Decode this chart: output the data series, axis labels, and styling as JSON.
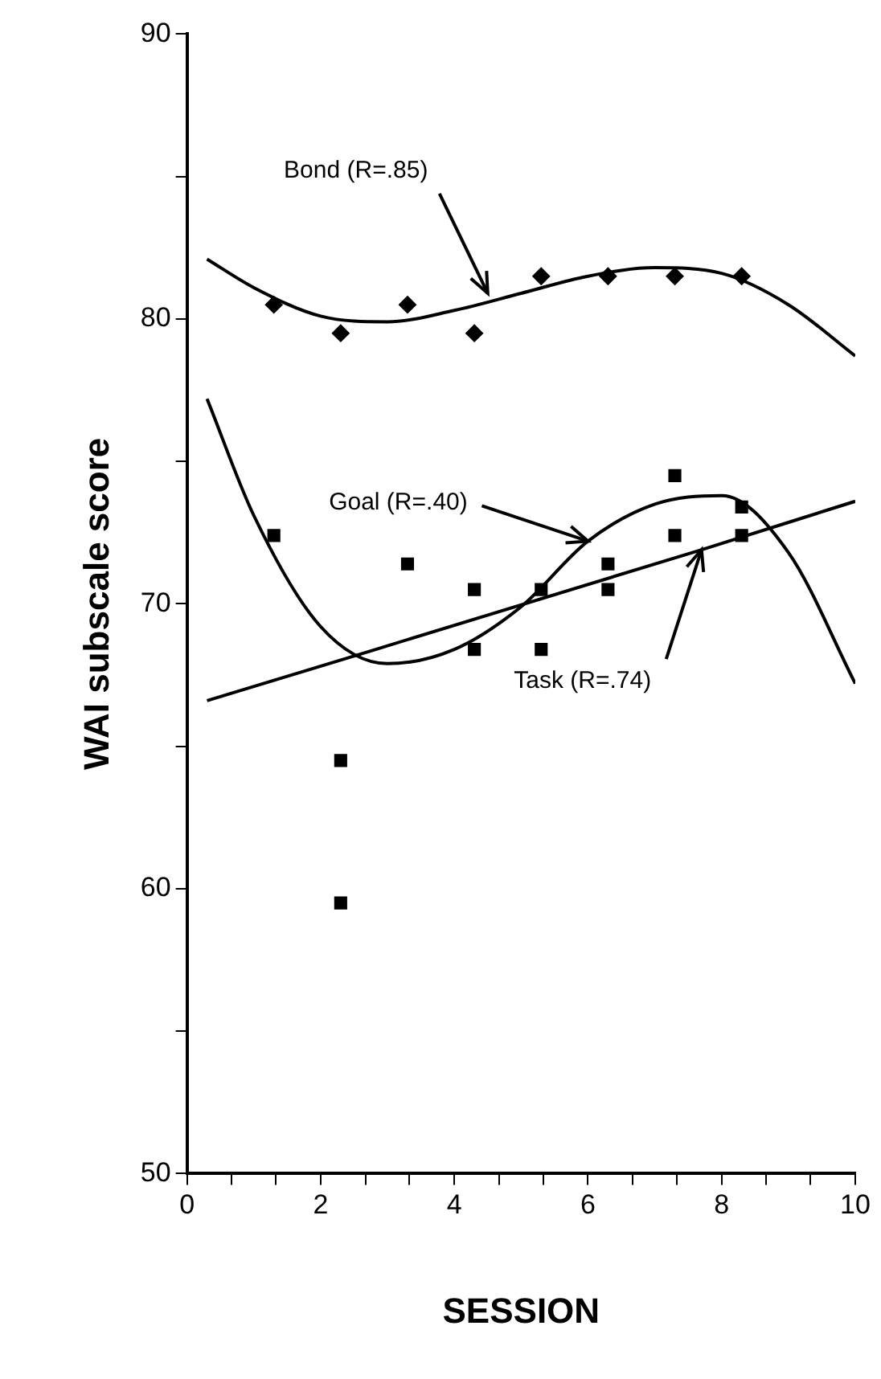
{
  "chart_data": {
    "type": "scatter",
    "xlabel": "SESSION",
    "ylabel": "WAI subscale score",
    "xlim": [
      0,
      10
    ],
    "ylim": [
      50,
      90
    ],
    "xticks": [
      0,
      {
        "value": 0.67,
        "label": null
      },
      {
        "value": 1.33,
        "label": null
      },
      2,
      {
        "value": 2.67,
        "label": null
      },
      {
        "value": 3.33,
        "label": null
      },
      4,
      {
        "value": 4.67,
        "label": null
      },
      {
        "value": 5.33,
        "label": null
      },
      6,
      {
        "value": 6.67,
        "label": null
      },
      {
        "value": 7.33,
        "label": null
      },
      8,
      {
        "value": 8.67,
        "label": null
      },
      {
        "value": 9.33,
        "label": null
      },
      10
    ],
    "yticks": [
      50,
      {
        "value": 55,
        "label": null
      },
      60,
      {
        "value": 65,
        "label": null
      },
      70,
      {
        "value": 75,
        "label": null
      },
      80,
      {
        "value": 85,
        "label": null
      },
      90
    ],
    "marker": "square",
    "legend": false,
    "series": [
      {
        "marker": "diamond",
        "color": "#000000",
        "x": [
          1.3,
          2.3,
          3.3,
          4.3,
          5.3,
          6.3,
          7.3,
          8.3
        ],
        "values": [
          80.5,
          79.5,
          80.5,
          79.5,
          81.5,
          81.5,
          81.5,
          81.5
        ]
      },
      {
        "type": "line",
        "marker": "none",
        "color": "#000000",
        "x": [
          0.3,
          1,
          2,
          3,
          4,
          5,
          6,
          7,
          8,
          9,
          10
        ],
        "values": [
          82.1,
          81.1,
          80.1,
          79.9,
          80.3,
          80.9,
          81.5,
          81.8,
          81.6,
          80.5,
          78.7
        ]
      },
      {
        "color": "#000000",
        "x": [
          2.3,
          4.3,
          5.3,
          6.3,
          7.3,
          8.3
        ],
        "values": [
          64.5,
          68.4,
          70.5,
          71.4,
          74.5,
          73.4
        ]
      },
      {
        "color": "#000000",
        "x": [
          1.3,
          2.3,
          3.3,
          4.3,
          5.3,
          6.3,
          7.3,
          8.3
        ],
        "values": [
          72.4,
          59.5,
          71.4,
          70.5,
          68.4,
          70.5,
          72.4,
          72.4
        ]
      },
      {
        "type": "line",
        "marker": "none",
        "color": "#000000",
        "x": [
          0.3,
          1,
          2,
          3,
          4,
          5,
          6,
          7,
          8,
          9,
          10
        ],
        "values": [
          77.2,
          73.1,
          69.2,
          67.9,
          68.4,
          69.9,
          72.2,
          73.5,
          73.8,
          71.8,
          67.2
        ]
      },
      {
        "type": "line",
        "marker": "none",
        "color": "#000000",
        "x": [
          0.3,
          7.7,
          10
        ],
        "values": [
          66.6,
          71.9,
          73.6
        ]
      }
    ],
    "annotations": [
      {
        "text": "Bond (R=.85)",
        "x": 4.5,
        "y": 80.9
      },
      {
        "text": "Goal (R=.40)",
        "x": 6,
        "y": 72.2
      },
      {
        "text": "Task (R=.74)",
        "x": 7.7,
        "y": 71.9
      }
    ]
  }
}
